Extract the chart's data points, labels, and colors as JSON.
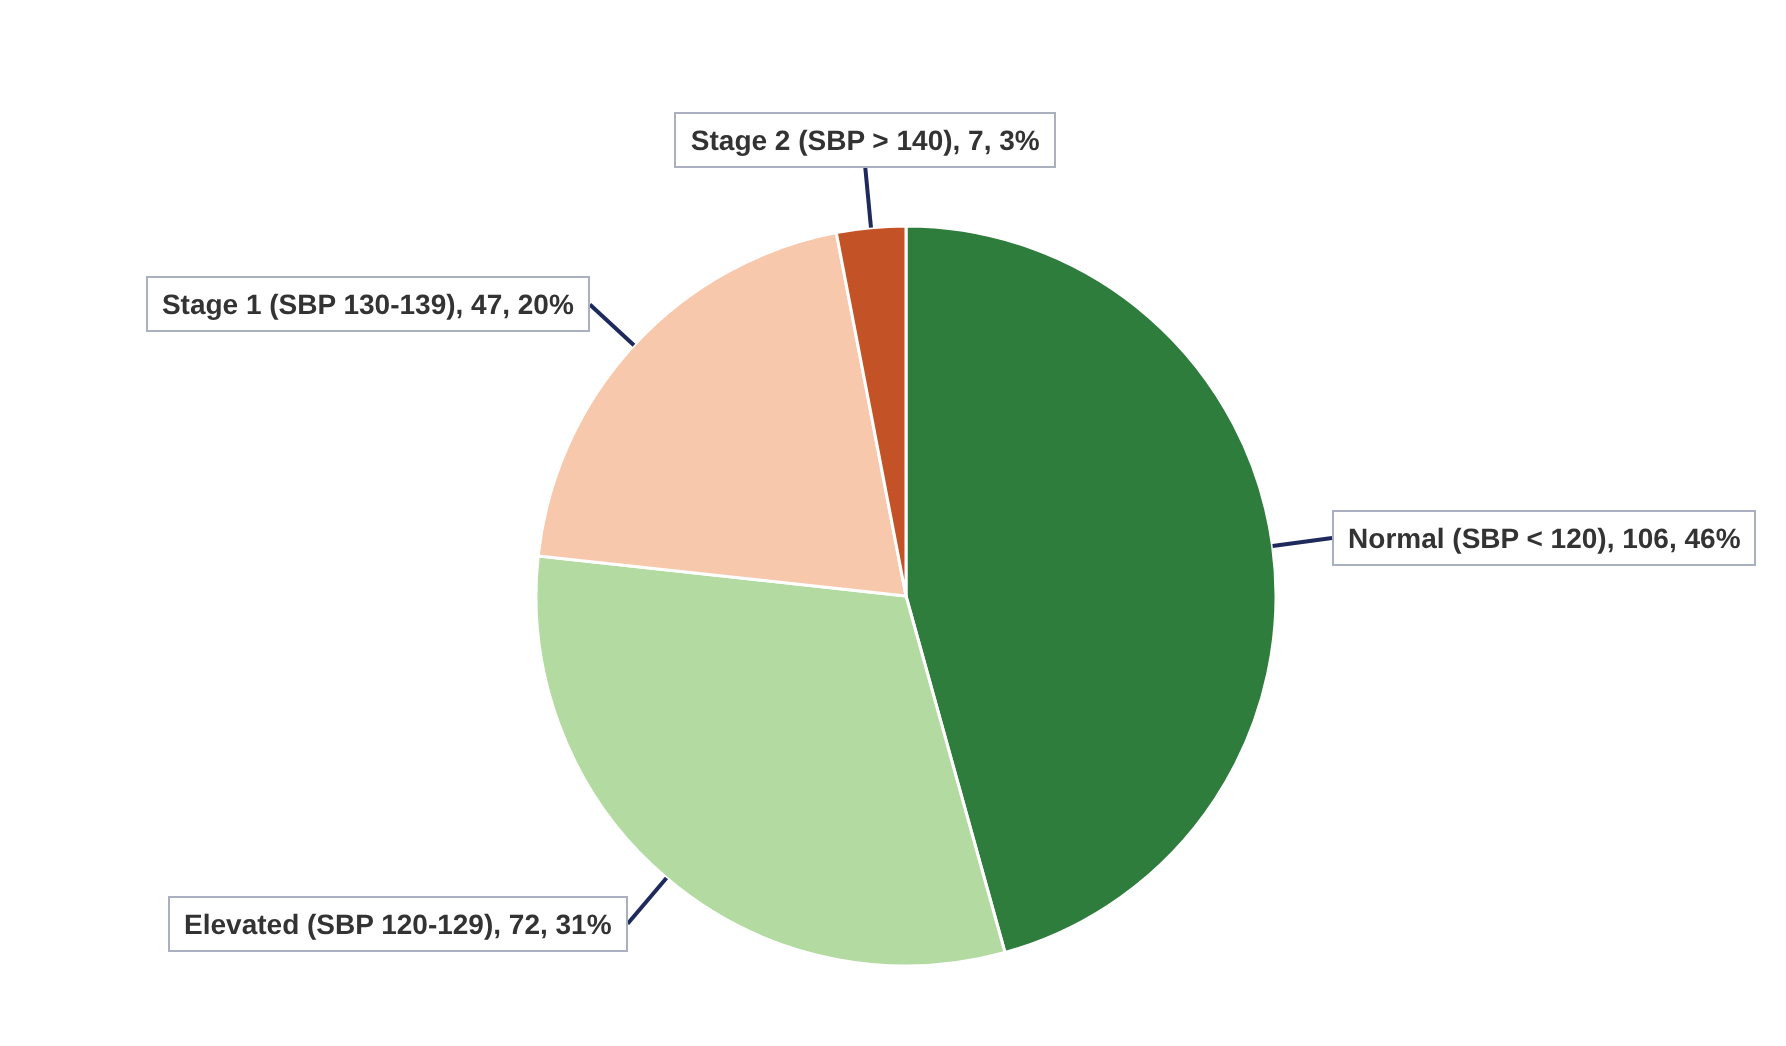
{
  "chart_data": {
    "type": "pie",
    "categories": [
      "Normal (SBP < 120)",
      "Elevated (SBP 120-129)",
      "Stage 1 (SBP 130-139)",
      "Stage 2 (SBP > 140)"
    ],
    "values": [
      106,
      72,
      47,
      7
    ],
    "value_labels": [
      "106, 46%",
      "72, 31%",
      "47, 20%",
      "7, 3%"
    ],
    "colors": [
      "#2e7d3c",
      "#b3dba1",
      "#f8c8ad",
      "#c45227"
    ],
    "legend": false
  }
}
